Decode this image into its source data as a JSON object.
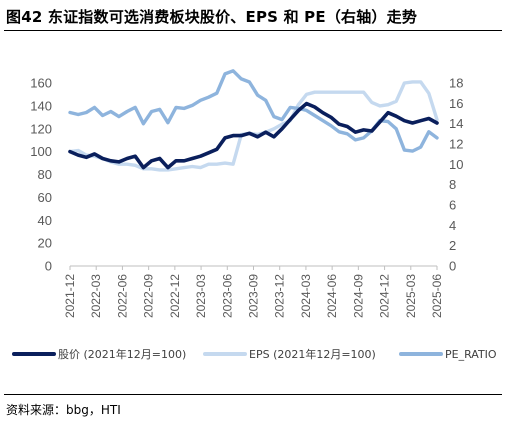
{
  "title": "图42 东证指数可选消费板块股价、EPS 和 PE（右轴）走势",
  "source": "资料来源：bbg，HTI",
  "chart_data": {
    "type": "line",
    "left_axis": {
      "ylim": [
        0,
        160
      ],
      "ticks": [
        0,
        20,
        40,
        60,
        80,
        100,
        120,
        140,
        160
      ]
    },
    "right_axis": {
      "ylim": [
        0,
        18
      ],
      "ticks": [
        0,
        2,
        4,
        6,
        8,
        10,
        12,
        14,
        16,
        18
      ]
    },
    "x_tick_labels": [
      "2021-12",
      "2022-03",
      "2022-06",
      "2022-09",
      "2022-12",
      "2023-03",
      "2023-06",
      "2023-09",
      "2023-12",
      "2024-03",
      "2024-06",
      "2024-09",
      "2024-12",
      "2025-03",
      "2025-06"
    ],
    "grid": false,
    "legend_position": "bottom",
    "series": [
      {
        "name": "股价 (2021年12月=100)",
        "axis": "left",
        "color": "#0a1f5c",
        "values": [
          100,
          97,
          95,
          98,
          94,
          92,
          91,
          94,
          96,
          86,
          92,
          94,
          86,
          92,
          92,
          94,
          96,
          99,
          102,
          112,
          114,
          114,
          116,
          113,
          117,
          113,
          120,
          128,
          136,
          142,
          139,
          134,
          130,
          124,
          122,
          117,
          119,
          118,
          126,
          134,
          131,
          127,
          125,
          127,
          129,
          125
        ]
      },
      {
        "name": "EPS (2021年12月=100)",
        "axis": "left",
        "color": "#c5d9ef",
        "values": [
          100,
          101,
          97,
          96,
          94,
          91,
          89,
          89,
          88,
          85,
          85,
          84,
          84,
          85,
          86,
          87,
          86,
          89,
          89,
          90,
          89,
          115,
          116,
          115,
          117,
          120,
          124,
          127,
          141,
          150,
          152,
          152,
          152,
          152,
          152,
          152,
          152,
          143,
          140,
          141,
          144,
          160,
          161,
          161,
          151,
          128
        ]
      },
      {
        "name": "PE_RATIO",
        "axis": "right",
        "color": "#8eb4dd",
        "values": [
          15.1,
          14.9,
          15.1,
          15.6,
          14.8,
          15.2,
          14.7,
          15.2,
          15.6,
          14.0,
          15.2,
          15.4,
          14.1,
          15.6,
          15.5,
          15.8,
          16.3,
          16.6,
          17.0,
          18.9,
          19.2,
          18.4,
          18.1,
          16.8,
          16.3,
          14.7,
          14.4,
          15.6,
          15.5,
          15.3,
          14.8,
          14.3,
          13.8,
          13.2,
          13.0,
          12.4,
          12.6,
          13.3,
          14.3,
          14.2,
          13.5,
          11.4,
          11.3,
          11.7,
          13.2,
          12.6
        ]
      }
    ]
  }
}
